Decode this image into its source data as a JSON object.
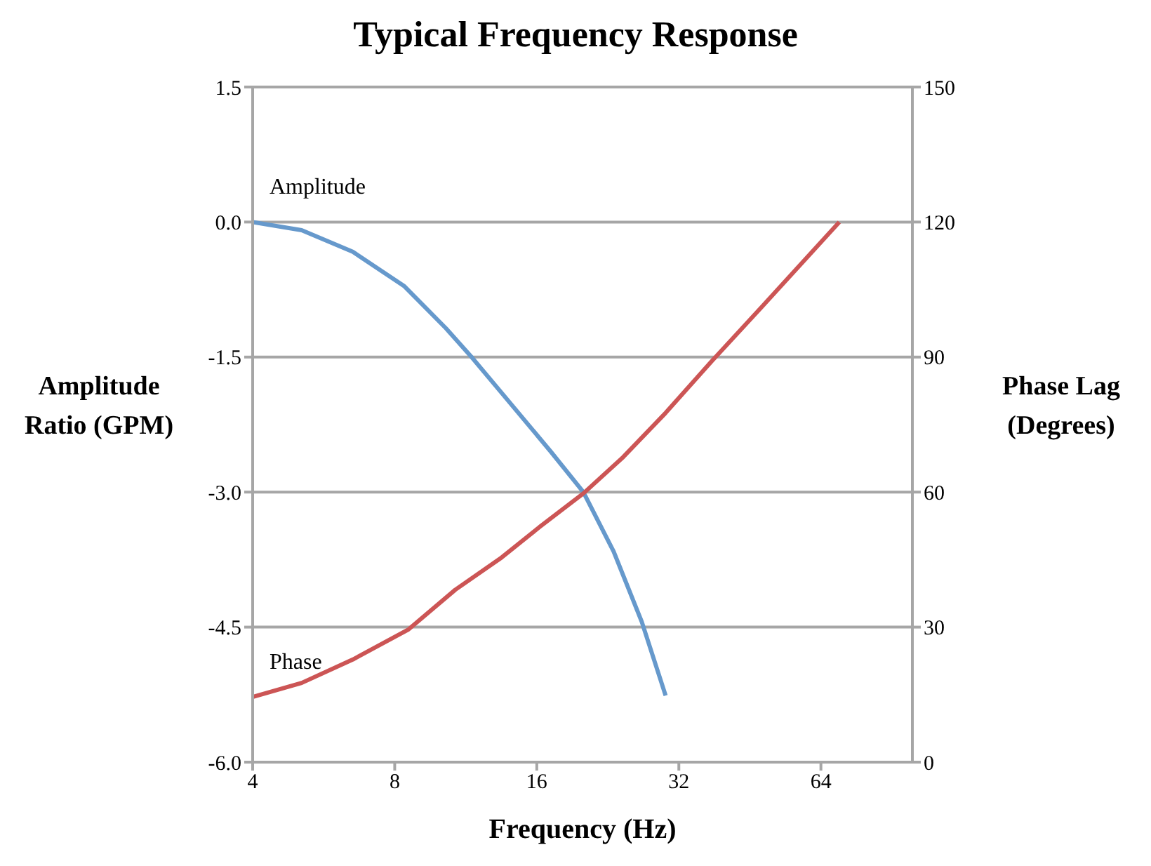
{
  "chart_data": {
    "type": "line",
    "title": "Typical Frequency Response",
    "xlabel": "Frequency (Hz)",
    "ylabel": "Amplitude Ratio (GPM)",
    "y2label": "Phase Lag (Degrees)",
    "log": "x",
    "xlim": [
      4,
      100
    ],
    "xticks": [
      4,
      8,
      16,
      32,
      64
    ],
    "ylim": [
      -6,
      1.5
    ],
    "yticks": [
      {
        "value": -6,
        "label": "-6.0"
      },
      -4.5,
      {
        "value": -3,
        "label": "-3.0"
      },
      -1.5,
      {
        "value": 0,
        "label": "0.0"
      },
      1.5
    ],
    "y2lim": [
      0,
      150
    ],
    "y2ticks": [
      0,
      30,
      60,
      90,
      120,
      150
    ],
    "grid": "y",
    "marker": "none",
    "line_style": "solid",
    "series": [
      {
        "name": "Amplitude",
        "color": "#6699cc",
        "x": [
          4,
          5.08,
          6.52,
          8.37,
          10.27,
          11.64,
          13.49,
          17.13,
          20.08,
          23.28,
          26.7,
          30
        ],
        "values": [
          0,
          -0.09,
          -0.33,
          -0.71,
          -1.18,
          -1.5,
          -1.9,
          -2.55,
          -3,
          -3.66,
          -4.44,
          -5.26
        ]
      },
      {
        "name": "Phase",
        "color": "#cc5555",
        "axis": "y2",
        "x": [
          4,
          5.08,
          6.52,
          8.56,
          10.75,
          13.49,
          16.2,
          20.08,
          24.4,
          30,
          37.5,
          48.2,
          70
        ],
        "values": [
          14.5,
          17.6,
          22.8,
          29.5,
          38.3,
          45.5,
          52.2,
          59.7,
          67.8,
          77.6,
          89,
          101.4,
          120
        ]
      }
    ]
  }
}
